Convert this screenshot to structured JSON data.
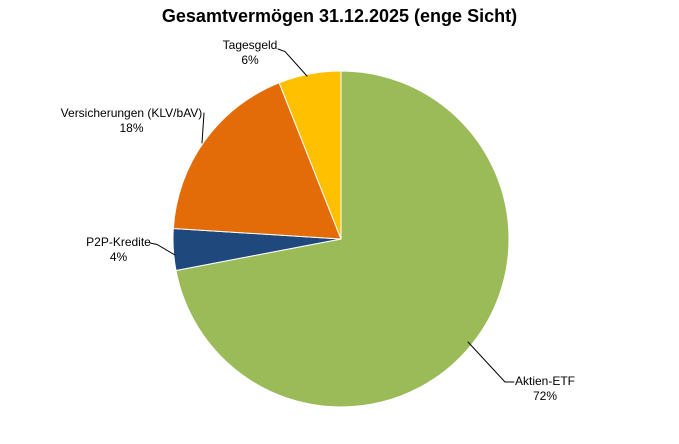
{
  "chart_data": {
    "type": "pie",
    "title": "Gesamtvermögen 31.12.2025 (enge Sicht)",
    "start_angle_deg": 0,
    "direction": "clockwise",
    "legend": "none",
    "label_style": "outside category labels with percentage and black leader lines",
    "background_color": "#FFFFFF",
    "slices": [
      {
        "label": "Aktien-ETF",
        "value": 72,
        "pct_label": "72%",
        "color": "#9BBB59"
      },
      {
        "label": "P2P-Kredite",
        "value": 4,
        "pct_label": "4%",
        "color": "#1F497D"
      },
      {
        "label": "Versicherungen (KLV/bAV)",
        "value": 18,
        "pct_label": "18%",
        "color": "#E36C09"
      },
      {
        "label": "Tagesgeld",
        "value": 6,
        "pct_label": "6%",
        "color": "#FFC000"
      }
    ]
  }
}
